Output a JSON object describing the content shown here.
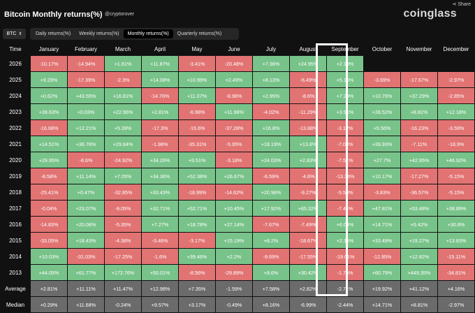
{
  "share_label": "Share",
  "title": "Bitcoin Monthly returns(%)",
  "handle": "@cryptorover",
  "logo": "coinglass",
  "coin_select": "BTC",
  "tabs": [
    "Daily returns(%)",
    "Weekly returns(%)",
    "Monthly returns(%)",
    "Quarterly returns(%)"
  ],
  "active_tab": 2,
  "columns": [
    "Time",
    "January",
    "February",
    "March",
    "April",
    "May",
    "June",
    "July",
    "August",
    "September",
    "October",
    "November",
    "December"
  ],
  "rows": [
    {
      "label": "2026",
      "cells": [
        "-10.17%",
        "-14.94%",
        "+1.81%",
        "+11.87%",
        "-3.41%",
        "-20.48%",
        "+7.36%",
        "+24.95%",
        "+2.19%",
        "",
        "",
        ""
      ]
    },
    {
      "label": "2025",
      "cells": [
        "+9.29%",
        "-17.39%",
        "-2.3%",
        "+14.08%",
        "+10.99%",
        "+2.49%",
        "+8.13%",
        "-6.49%",
        "+5.16%",
        "-3.69%",
        "-17.67%",
        "-2.97%"
      ]
    },
    {
      "label": "2024",
      "cells": [
        "+0.62%",
        "+43.55%",
        "+16.81%",
        "-14.76%",
        "+11.07%",
        "-6.96%",
        "+2.95%",
        "-8.6%",
        "+7.29%",
        "+10.76%",
        "+37.29%",
        "-2.85%"
      ]
    },
    {
      "label": "2023",
      "cells": [
        "+39.63%",
        "+0.03%",
        "+22.96%",
        "+2.81%",
        "-6.98%",
        "+11.98%",
        "-4.02%",
        "-11.29%",
        "+3.91%",
        "+28.52%",
        "+8.81%",
        "+12.18%"
      ]
    },
    {
      "label": "2022",
      "cells": [
        "-16.68%",
        "+12.21%",
        "+5.39%",
        "-17.3%",
        "-15.6%",
        "-37.28%",
        "+16.8%",
        "-13.88%",
        "-3.12%",
        "+5.56%",
        "-16.23%",
        "-3.59%"
      ]
    },
    {
      "label": "2021",
      "cells": [
        "+14.51%",
        "+36.78%",
        "+29.84%",
        "-1.98%",
        "-35.31%",
        "-5.95%",
        "+18.19%",
        "+13.8%",
        "-7.03%",
        "+39.93%",
        "-7.11%",
        "-18.9%"
      ]
    },
    {
      "label": "2020",
      "cells": [
        "+29.95%",
        "-8.6%",
        "-24.92%",
        "+34.26%",
        "+9.51%",
        "-3.18%",
        "+24.03%",
        "+2.83%",
        "-7.51%",
        "+27.7%",
        "+42.95%",
        "+46.92%"
      ]
    },
    {
      "label": "2019",
      "cells": [
        "-8.58%",
        "+11.14%",
        "+7.05%",
        "+34.36%",
        "+52.38%",
        "+26.67%",
        "-6.59%",
        "-4.6%",
        "-13.38%",
        "+10.17%",
        "-17.27%",
        "-5.15%"
      ]
    },
    {
      "label": "2018",
      "cells": [
        "-25.41%",
        "+0.47%",
        "-32.85%",
        "+33.43%",
        "-18.99%",
        "-14.62%",
        "+20.96%",
        "-9.27%",
        "-5.58%",
        "-3.83%",
        "-36.57%",
        "-5.15%"
      ]
    },
    {
      "label": "2017",
      "cells": [
        "-0.04%",
        "+23.07%",
        "-9.05%",
        "+32.71%",
        "+52.71%",
        "+10.45%",
        "+17.92%",
        "+65.32%",
        "-7.44%",
        "+47.81%",
        "+53.48%",
        "+38.89%"
      ]
    },
    {
      "label": "2016",
      "cells": [
        "-14.83%",
        "+20.08%",
        "-5.35%",
        "+7.27%",
        "+18.78%",
        "+27.14%",
        "-7.67%",
        "-7.49%",
        "+6.04%",
        "+14.71%",
        "+5.42%",
        "+30.8%"
      ]
    },
    {
      "label": "2015",
      "cells": [
        "-33.05%",
        "+18.43%",
        "-4.38%",
        "-3.46%",
        "-3.17%",
        "+15.19%",
        "+8.2%",
        "-18.67%",
        "+2.35%",
        "+33.49%",
        "+19.27%",
        "+13.83%"
      ]
    },
    {
      "label": "2014",
      "cells": [
        "+10.03%",
        "-31.03%",
        "-17.25%",
        "-1.6%",
        "+39.46%",
        "+2.2%",
        "-9.69%",
        "-17.55%",
        "-19.01%",
        "-12.95%",
        "+12.82%",
        "-15.11%"
      ]
    },
    {
      "label": "2013",
      "cells": [
        "+44.05%",
        "+61.77%",
        "+172.76%",
        "+50.01%",
        "-8.56%",
        "-29.89%",
        "+9.6%",
        "+30.42%",
        "-1.76%",
        "+60.79%",
        "+449.35%",
        "-34.81%"
      ]
    }
  ],
  "summary_rows": [
    {
      "label": "Average",
      "cells": [
        "+2.81%",
        "+11.11%",
        "+11.47%",
        "+12.98%",
        "+7.35%",
        "-1.59%",
        "+7.58%",
        "+2.82%",
        "-2.71%",
        "+19.92%",
        "+41.12%",
        "+4.16%"
      ]
    },
    {
      "label": "Median",
      "cells": [
        "+0.29%",
        "+11.68%",
        "-0.24%",
        "+9.57%",
        "+3.17%",
        "-0.49%",
        "+8.16%",
        "-6.99%",
        "-2.44%",
        "+14.71%",
        "+8.81%",
        "-2.97%"
      ]
    }
  ],
  "colors": {
    "positive": "#78c38a",
    "negative": "#e27373",
    "summary": "#6b6b6b",
    "background": "#111111"
  },
  "highlighted_column": "September"
}
